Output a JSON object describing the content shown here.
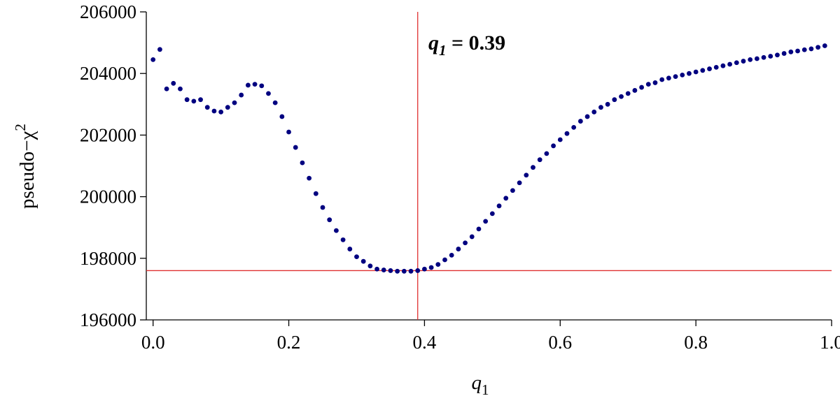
{
  "chart_data": {
    "type": "scatter",
    "title": "",
    "xlabel": "q",
    "xlabel_sub": "1",
    "ylabel": "pseudo−χ",
    "ylabel_sup": "2",
    "xlim": [
      -0.01,
      1.0
    ],
    "ylim": [
      196000,
      206000
    ],
    "x_ticks": [
      0.0,
      0.2,
      0.4,
      0.6,
      0.8,
      1.0
    ],
    "x_tick_labels": [
      "0.0",
      "0.2",
      "0.4",
      "0.6",
      "0.8",
      "1.0"
    ],
    "y_ticks": [
      196000,
      198000,
      200000,
      202000,
      204000,
      206000
    ],
    "y_tick_labels": [
      "196000",
      "198000",
      "200000",
      "202000",
      "204000",
      "206000"
    ],
    "grid": false,
    "marker_color": "#000080",
    "reference_line_color": "#e03030",
    "best_fit": {
      "x": 0.39,
      "y": 197600
    },
    "annotation": {
      "var": "q",
      "sub": "1",
      "text": " = 0.39"
    },
    "series": [
      {
        "x": [
          0.0,
          0.01,
          0.02,
          0.03,
          0.04,
          0.05,
          0.06,
          0.07,
          0.08,
          0.09,
          0.1,
          0.11,
          0.12,
          0.13,
          0.14,
          0.15,
          0.16,
          0.17,
          0.18,
          0.19,
          0.2,
          0.21,
          0.22,
          0.23,
          0.24,
          0.25,
          0.26,
          0.27,
          0.28,
          0.29,
          0.3,
          0.31,
          0.32,
          0.33,
          0.34,
          0.35,
          0.36,
          0.37,
          0.38,
          0.39,
          0.4,
          0.41,
          0.42,
          0.43,
          0.44,
          0.45,
          0.46,
          0.47,
          0.48,
          0.49,
          0.5,
          0.51,
          0.52,
          0.53,
          0.54,
          0.55,
          0.56,
          0.57,
          0.58,
          0.59,
          0.6,
          0.61,
          0.62,
          0.63,
          0.64,
          0.65,
          0.66,
          0.67,
          0.68,
          0.69,
          0.7,
          0.71,
          0.72,
          0.73,
          0.74,
          0.75,
          0.76,
          0.77,
          0.78,
          0.79,
          0.8,
          0.81,
          0.82,
          0.83,
          0.84,
          0.85,
          0.86,
          0.87,
          0.88,
          0.89,
          0.9,
          0.91,
          0.92,
          0.93,
          0.94,
          0.95,
          0.96,
          0.97,
          0.98,
          0.99
        ],
        "y": [
          204450,
          204780,
          203500,
          203680,
          203500,
          203150,
          203100,
          203150,
          202900,
          202780,
          202750,
          202900,
          203050,
          203300,
          203620,
          203650,
          203600,
          203350,
          203050,
          202600,
          202100,
          201600,
          201100,
          200600,
          200100,
          199650,
          199250,
          198900,
          198600,
          198300,
          198050,
          197900,
          197750,
          197650,
          197620,
          197600,
          197580,
          197580,
          197580,
          197600,
          197650,
          197700,
          197800,
          197950,
          198100,
          198300,
          198500,
          198700,
          198950,
          199200,
          199450,
          199700,
          199950,
          200200,
          200450,
          200700,
          200950,
          201200,
          201400,
          201650,
          201850,
          202050,
          202250,
          202450,
          202600,
          202750,
          202900,
          203000,
          203150,
          203250,
          203350,
          203450,
          203550,
          203650,
          203700,
          203800,
          203850,
          203900,
          203950,
          204000,
          204050,
          204100,
          204150,
          204200,
          204250,
          204300,
          204350,
          204400,
          204450,
          204480,
          204520,
          204560,
          204600,
          204650,
          204700,
          204730,
          204770,
          204800,
          204850,
          204900
        ]
      }
    ]
  }
}
